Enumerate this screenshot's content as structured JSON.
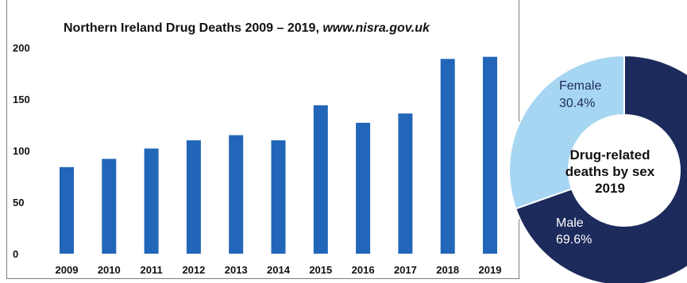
{
  "chart_data": [
    {
      "type": "bar",
      "title": "Northern Ireland Drug Deaths 2009 – 2019, ",
      "title_source": "www.nisra.gov.uk",
      "categories": [
        "2009",
        "2010",
        "2011",
        "2012",
        "2013",
        "2014",
        "2015",
        "2016",
        "2017",
        "2018",
        "2019"
      ],
      "values": [
        84,
        92,
        102,
        110,
        115,
        110,
        144,
        127,
        136,
        189,
        191
      ],
      "ylim": [
        0,
        200
      ],
      "yticks": [
        "0",
        "50",
        "100",
        "150",
        "200"
      ],
      "xlabel": "",
      "ylabel": "",
      "grid": false,
      "bar_color": "#2166b8"
    },
    {
      "type": "pie",
      "center_label": [
        "Drug-related",
        "deaths by sex",
        "2019"
      ],
      "slices": [
        {
          "name": "Male",
          "percent": "69.6%",
          "value": 69.6,
          "color": "#1c2a5c",
          "text_color": "#ffffff"
        },
        {
          "name": "Female",
          "percent": "30.4%",
          "value": 30.4,
          "color": "#a7d6f2",
          "text_color": "#1c2a5c"
        }
      ]
    }
  ]
}
